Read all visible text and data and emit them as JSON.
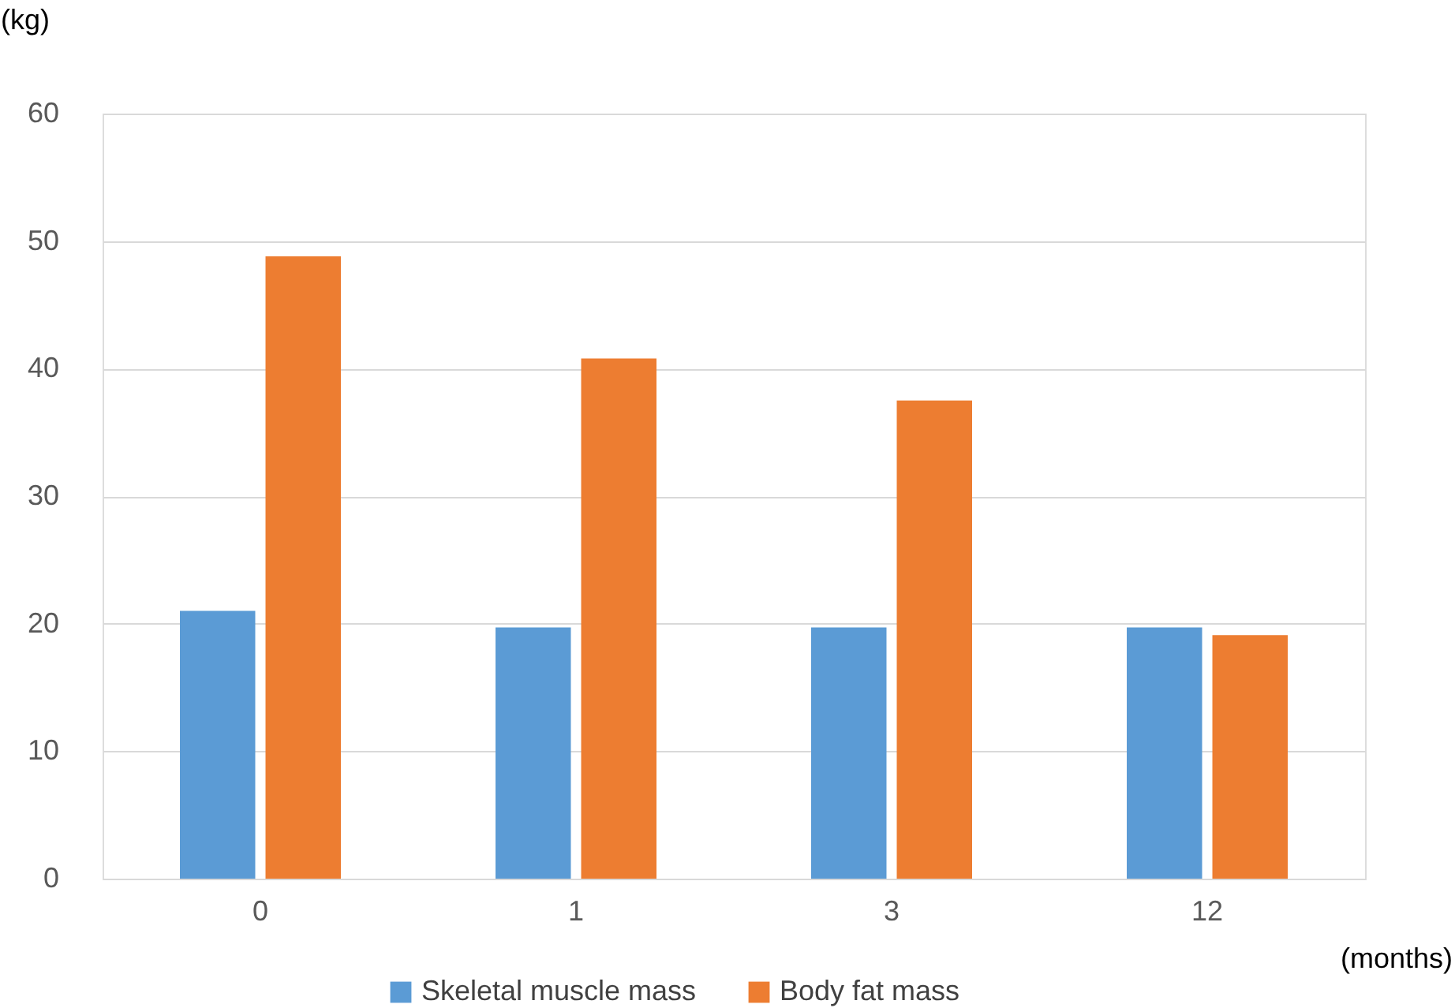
{
  "chart_data": {
    "type": "bar",
    "xlabel": "(months)",
    "ylabel": "(kg)",
    "categories": [
      "0",
      "1",
      "3",
      "12"
    ],
    "series": [
      {
        "name": "Skeletal muscle mass",
        "color": "#5b9bd5",
        "values": [
          21.0,
          19.7,
          19.7,
          19.7
        ]
      },
      {
        "name": "Body fat mass",
        "color": "#ed7d31",
        "values": [
          48.8,
          40.8,
          37.5,
          19.1
        ]
      }
    ],
    "ylim": [
      0,
      60
    ],
    "yticks": [
      0,
      10,
      20,
      30,
      40,
      50,
      60
    ],
    "grid": "y",
    "legend": "bottom"
  }
}
